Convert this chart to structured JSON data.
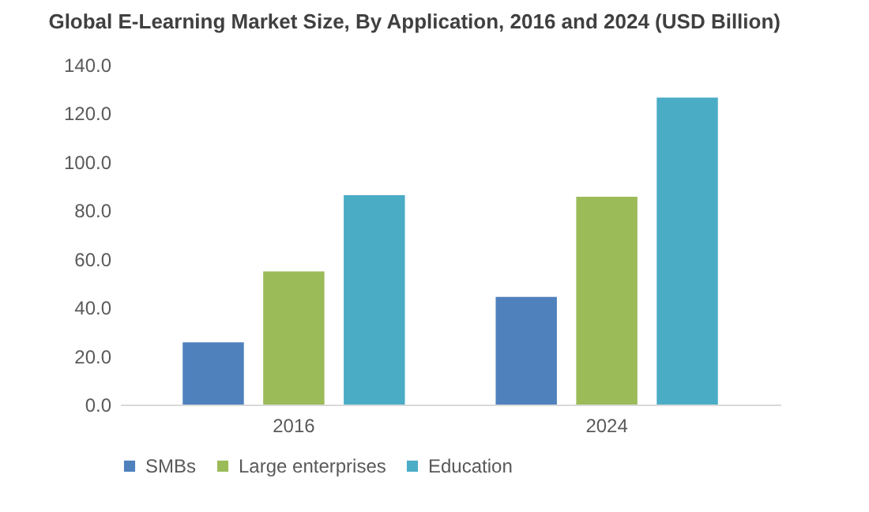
{
  "chart_data": {
    "type": "bar",
    "title": "Global E-Learning Market Size, By Application, 2016 and 2024 (USD Billion)",
    "categories": [
      "2016",
      "2024"
    ],
    "series": [
      {
        "name": "SMBs",
        "color": "#4f81bd",
        "values": [
          25.6,
          44.4
        ]
      },
      {
        "name": "Large enterprises",
        "color": "#9bbb59",
        "values": [
          54.9,
          85.6
        ]
      },
      {
        "name": "Education",
        "color": "#4bacc6",
        "values": [
          86.3,
          126.5
        ]
      }
    ],
    "ylim": [
      0,
      140
    ],
    "yticks": [
      {
        "value": 0,
        "label": "0.0"
      },
      {
        "value": 20,
        "label": "20.0"
      },
      {
        "value": 40,
        "label": "40.0"
      },
      {
        "value": 60,
        "label": "60.0"
      },
      {
        "value": 80,
        "label": "80.0"
      },
      {
        "value": 100,
        "label": "100.0"
      },
      {
        "value": 120,
        "label": "120.0"
      },
      {
        "value": 140,
        "label": "140.0"
      }
    ],
    "grid": false,
    "legend": "bottom"
  }
}
